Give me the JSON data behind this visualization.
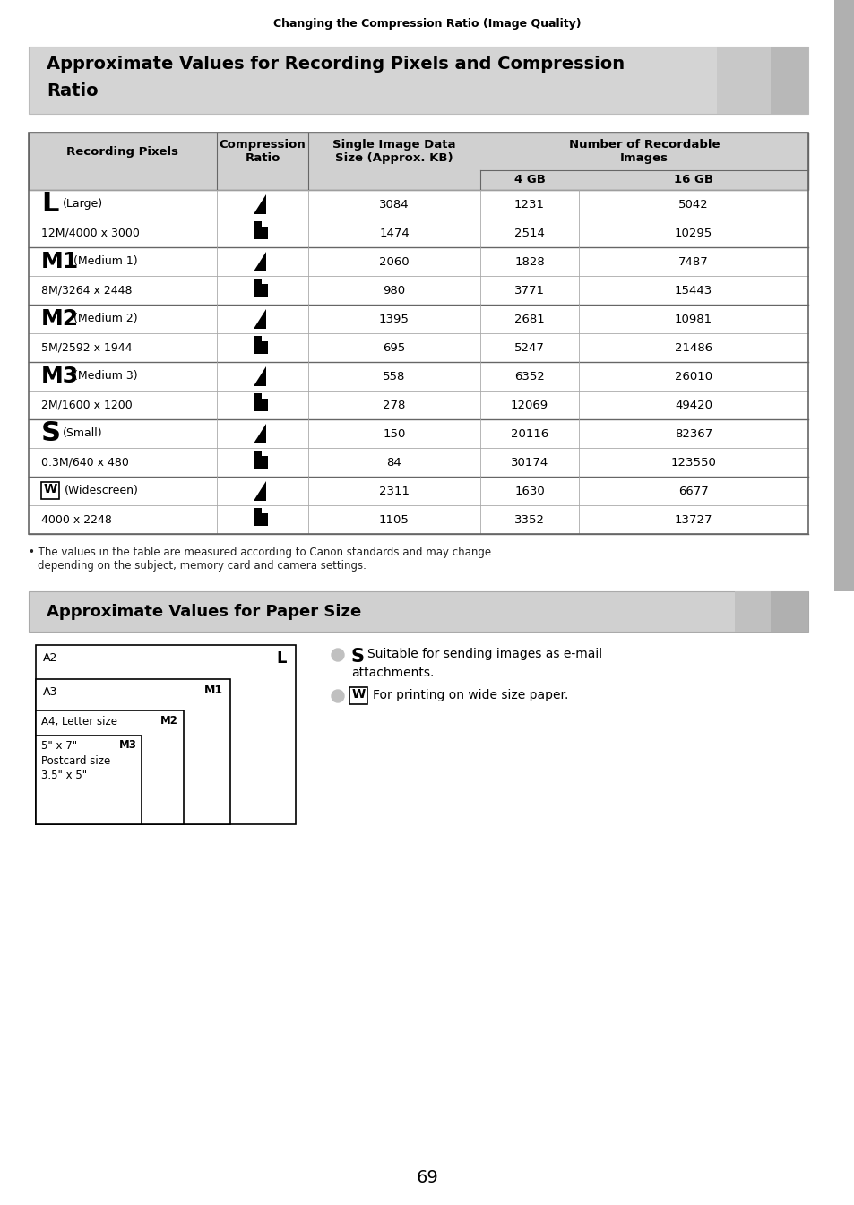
{
  "page_header": "Changing the Compression Ratio (Image Quality)",
  "section1_title_line1": "Approximate Values for Recording Pixels and Compression",
  "section1_title_line2": "Ratio",
  "section2_title": "Approximate Values for Paper Size",
  "col_headers": [
    "Recording Pixels",
    "Compression\nRatio",
    "Single Image Data\nSize (Approx. KB)",
    "Number of Recordable\nImages",
    "4 GB",
    "16 GB"
  ],
  "row_labels_main": [
    [
      "L",
      "(Large)",
      "12M/4000 x 3000"
    ],
    [
      "M1",
      "(Medium 1)",
      "8M/3264 x 2448"
    ],
    [
      "M2",
      "(Medium 2)",
      "5M/2592 x 1944"
    ],
    [
      "M3",
      "(Medium 3)",
      "2M/1600 x 1200"
    ],
    [
      "S",
      "(Small)",
      "0.3M/640 x 480"
    ],
    [
      "W",
      "(Widescreen)",
      "4000 x 2248"
    ]
  ],
  "table_data": [
    [
      "3084",
      "1231",
      "5042"
    ],
    [
      "1474",
      "2514",
      "10295"
    ],
    [
      "2060",
      "1828",
      "7487"
    ],
    [
      "980",
      "3771",
      "15443"
    ],
    [
      "1395",
      "2681",
      "10981"
    ],
    [
      "695",
      "5247",
      "21486"
    ],
    [
      "558",
      "6352",
      "26010"
    ],
    [
      "278",
      "12069",
      "49420"
    ],
    [
      "150",
      "20116",
      "82367"
    ],
    [
      "84",
      "30174",
      "123550"
    ],
    [
      "2311",
      "1630",
      "6677"
    ],
    [
      "1105",
      "3352",
      "13727"
    ]
  ],
  "footnote_bullet": "•",
  "footnote_text": "The values in the table are measured according to Canon standards and may change\n  depending on the subject, memory card and camera settings.",
  "paper_labels": [
    "A2",
    "A3",
    "A4, Letter size",
    "5\" x 7\"",
    "Postcard size",
    "3.5\" x 5\""
  ],
  "paper_size_labels": [
    "L",
    "M1",
    "M2",
    "M3"
  ],
  "note1_symbol": "S",
  "note1_text": "Suitable for sending images as e-mail\nattachments.",
  "note2_symbol": "W",
  "note2_text": "For printing on wide size paper.",
  "page_number": "69",
  "bg_white": "#ffffff",
  "bg_light_gray": "#d8d8d8",
  "bg_header_gray": "#c8c8c8",
  "sidebar_gray": "#b0b0b0",
  "line_gray": "#aaaaaa",
  "line_dark": "#666666",
  "black": "#000000",
  "text_dark": "#222222",
  "footnote_gray": "#555555"
}
